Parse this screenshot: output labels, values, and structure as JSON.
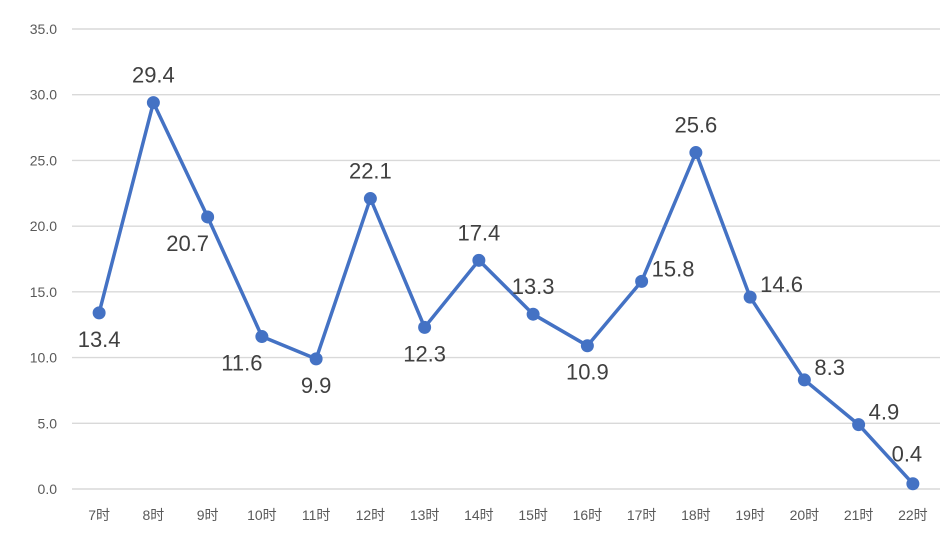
{
  "chart_data": {
    "type": "line",
    "title": "",
    "xlabel": "",
    "ylabel": "",
    "categories": [
      "7时",
      "8时",
      "9时",
      "10时",
      "11时",
      "12时",
      "13时",
      "14时",
      "15时",
      "16时",
      "17时",
      "18时",
      "19时",
      "20时",
      "21时",
      "22时"
    ],
    "series": [
      {
        "name": "",
        "values": [
          13.4,
          29.4,
          20.7,
          11.6,
          9.9,
          22.1,
          12.3,
          17.4,
          13.3,
          10.9,
          15.8,
          25.6,
          14.6,
          8.3,
          4.9,
          0.4
        ],
        "labels": [
          "13.4",
          "29.4",
          "20.7",
          "11.6",
          "9.9",
          "22.1",
          "12.3",
          "17.4",
          "13.3",
          "10.9",
          "15.8",
          "25.6",
          "14.6",
          "8.3",
          "4.9",
          "0.4"
        ],
        "color": "#4472c4"
      }
    ],
    "ylim": [
      0,
      35
    ],
    "yticks": [
      0,
      5,
      10,
      15,
      20,
      25,
      30,
      35
    ],
    "ytick_labels": [
      "0.0",
      "5.0",
      "10.0",
      "15.0",
      "20.0",
      "25.0",
      "30.0",
      "35.0"
    ],
    "grid": true,
    "legend": "none"
  }
}
